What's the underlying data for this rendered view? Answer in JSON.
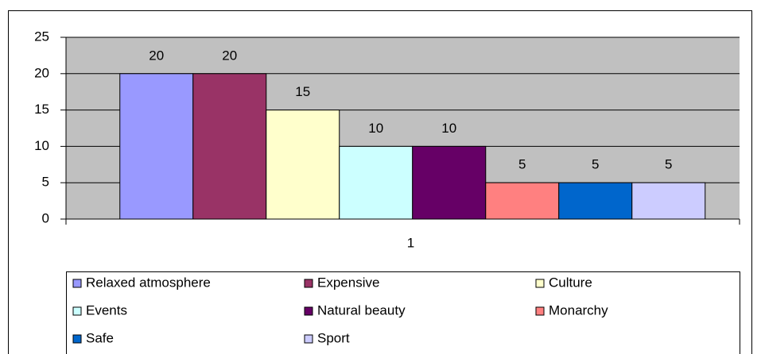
{
  "chart_data": {
    "type": "bar",
    "categories": [
      "1"
    ],
    "series": [
      {
        "name": "Relaxed atmosphere",
        "color": "#9999ff",
        "values": [
          20
        ]
      },
      {
        "name": "Expensive",
        "color": "#993366",
        "values": [
          20
        ]
      },
      {
        "name": "Culture",
        "color": "#ffffcc",
        "values": [
          15
        ]
      },
      {
        "name": "Events",
        "color": "#ccffff",
        "values": [
          10
        ]
      },
      {
        "name": "Natural beauty",
        "color": "#660066",
        "values": [
          10
        ]
      },
      {
        "name": "Monarchy",
        "color": "#ff8080",
        "values": [
          5
        ]
      },
      {
        "name": "Safe",
        "color": "#0066cc",
        "values": [
          5
        ]
      },
      {
        "name": "Sport",
        "color": "#ccccff",
        "values": [
          5
        ]
      }
    ],
    "ylim": [
      0,
      25
    ],
    "yticks": [
      0,
      5,
      10,
      15,
      20,
      25
    ],
    "grid": true,
    "legend": "bottom"
  }
}
